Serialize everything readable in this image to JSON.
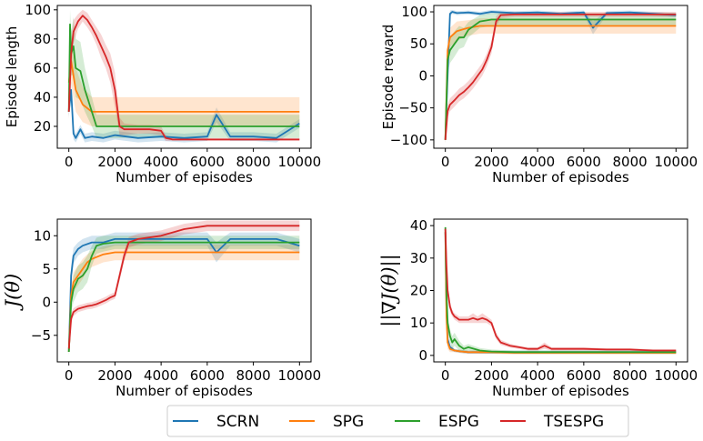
{
  "legend": [
    {
      "name": "SCRN",
      "color": "#1f77b4"
    },
    {
      "name": "SPG",
      "color": "#ff7f0e"
    },
    {
      "name": "ESPG",
      "color": "#2ca02c"
    },
    {
      "name": "TSESPG",
      "color": "#d62728"
    }
  ],
  "chart_data": [
    {
      "type": "line",
      "xlabel": "Number of episodes",
      "ylabel": "Episode length",
      "xlim": [
        -500,
        10500
      ],
      "ylim": [
        5,
        103
      ],
      "xticks": [
        0,
        2000,
        4000,
        6000,
        8000,
        10000
      ],
      "yticks": [
        20,
        40,
        60,
        80,
        100
      ],
      "grid": false,
      "series": [
        {
          "name": "SCRN",
          "color": "#1f77b4",
          "x": [
            0,
            100,
            200,
            300,
            500,
            700,
            1000,
            1500,
            2000,
            3000,
            4000,
            5000,
            6000,
            6400,
            7000,
            8000,
            9000,
            10000
          ],
          "y": [
            30,
            45,
            15,
            12,
            18,
            12,
            13,
            12,
            14,
            12,
            13,
            12,
            13,
            28,
            13,
            13,
            12,
            22
          ],
          "band": [
            3,
            6,
            4,
            3,
            3,
            3,
            3,
            3,
            3,
            3,
            3,
            3,
            3,
            5,
            3,
            3,
            3,
            3
          ]
        },
        {
          "name": "SPG",
          "color": "#ff7f0e",
          "x": [
            0,
            100,
            300,
            600,
            1000,
            1500,
            2000,
            3000,
            4000,
            6000,
            8000,
            10000
          ],
          "y": [
            50,
            65,
            45,
            35,
            30,
            30,
            30,
            30,
            30,
            30,
            30,
            30
          ],
          "band": [
            15,
            15,
            15,
            12,
            10,
            10,
            10,
            10,
            10,
            10,
            10,
            10
          ]
        },
        {
          "name": "ESPG",
          "color": "#2ca02c",
          "x": [
            0,
            50,
            100,
            200,
            300,
            500,
            700,
            1000,
            1200,
            1500,
            2000,
            3000,
            4000,
            6000,
            8000,
            10000
          ],
          "y": [
            30,
            90,
            70,
            75,
            60,
            58,
            45,
            30,
            20,
            20,
            20,
            20,
            20,
            20,
            20,
            20
          ],
          "band": [
            5,
            10,
            15,
            20,
            20,
            20,
            15,
            10,
            8,
            8,
            8,
            8,
            8,
            8,
            8,
            8
          ]
        },
        {
          "name": "TSESPG",
          "color": "#d62728",
          "x": [
            0,
            100,
            200,
            400,
            600,
            800,
            1000,
            1200,
            1400,
            1600,
            1800,
            2000,
            2200,
            2400,
            3000,
            3500,
            4000,
            4200,
            4500,
            5000,
            6000,
            7000,
            8000,
            9000,
            10000
          ],
          "y": [
            30,
            70,
            85,
            92,
            96,
            93,
            88,
            82,
            75,
            68,
            60,
            45,
            20,
            18,
            18,
            18,
            17,
            12,
            11,
            11,
            11,
            11,
            11,
            11,
            11
          ],
          "band": [
            5,
            8,
            8,
            5,
            4,
            5,
            5,
            6,
            8,
            8,
            10,
            12,
            6,
            4,
            3,
            3,
            3,
            2,
            1,
            1,
            1,
            1,
            1,
            1,
            1
          ]
        }
      ]
    },
    {
      "type": "line",
      "xlabel": "Number of episodes",
      "ylabel": "Episode reward",
      "xlim": [
        -500,
        10500
      ],
      "ylim": [
        -113,
        110
      ],
      "xticks": [
        0,
        2000,
        4000,
        6000,
        8000,
        10000
      ],
      "yticks": [
        -100,
        -50,
        0,
        50,
        100
      ],
      "grid": false,
      "series": [
        {
          "name": "SCRN",
          "color": "#1f77b4",
          "x": [
            0,
            100,
            200,
            300,
            500,
            1000,
            1500,
            2000,
            3000,
            4000,
            5000,
            6000,
            6400,
            7000,
            8000,
            9000,
            10000
          ],
          "y": [
            -100,
            0,
            97,
            100,
            98,
            99,
            97,
            100,
            98,
            99,
            97,
            99,
            75,
            98,
            99,
            97,
            95
          ],
          "band": [
            5,
            10,
            5,
            3,
            3,
            3,
            3,
            3,
            3,
            3,
            3,
            3,
            10,
            3,
            3,
            3,
            3
          ]
        },
        {
          "name": "SPG",
          "color": "#ff7f0e",
          "x": [
            0,
            100,
            200,
            500,
            1000,
            1500,
            2000,
            3000,
            4000,
            6000,
            8000,
            10000
          ],
          "y": [
            -100,
            40,
            60,
            70,
            75,
            78,
            78,
            78,
            78,
            78,
            78,
            78
          ],
          "band": [
            5,
            15,
            15,
            15,
            12,
            12,
            12,
            12,
            12,
            12,
            12,
            12
          ]
        },
        {
          "name": "ESPG",
          "color": "#2ca02c",
          "x": [
            0,
            100,
            200,
            400,
            600,
            800,
            1000,
            1500,
            2000,
            3000,
            4000,
            6000,
            8000,
            10000
          ],
          "y": [
            -100,
            25,
            40,
            50,
            60,
            60,
            72,
            85,
            88,
            88,
            88,
            88,
            88,
            88
          ],
          "band": [
            5,
            20,
            20,
            20,
            18,
            15,
            12,
            10,
            10,
            10,
            10,
            10,
            10,
            10
          ]
        },
        {
          "name": "TSESPG",
          "color": "#d62728",
          "x": [
            0,
            100,
            200,
            400,
            600,
            800,
            1000,
            1200,
            1400,
            1600,
            1800,
            2000,
            2200,
            2400,
            3000,
            4000,
            6000,
            8000,
            10000
          ],
          "y": [
            -100,
            -55,
            -45,
            -38,
            -30,
            -25,
            -18,
            -10,
            0,
            10,
            25,
            45,
            85,
            95,
            96,
            96,
            96,
            96,
            96
          ],
          "band": [
            5,
            10,
            10,
            10,
            10,
            10,
            10,
            10,
            10,
            10,
            10,
            10,
            8,
            5,
            4,
            4,
            4,
            4,
            4
          ]
        }
      ]
    },
    {
      "type": "line",
      "xlabel": "Number of episodes",
      "ylabel": "J(θ)",
      "xlim": [
        -500,
        10500
      ],
      "ylim": [
        -9,
        12.5
      ],
      "xticks": [
        0,
        2000,
        4000,
        6000,
        8000,
        10000
      ],
      "yticks": [
        -5,
        0,
        5,
        10
      ],
      "grid": false,
      "series": [
        {
          "name": "SCRN",
          "color": "#1f77b4",
          "x": [
            0,
            100,
            200,
            400,
            600,
            1000,
            1500,
            2000,
            2500,
            3000,
            4000,
            5000,
            6000,
            6400,
            7000,
            8000,
            9000,
            10000
          ],
          "y": [
            -7.5,
            4,
            7,
            8,
            8.5,
            9,
            9,
            9.5,
            9.5,
            9.5,
            9.5,
            9.5,
            9.5,
            7.5,
            9.5,
            9.5,
            9.5,
            8.5
          ],
          "band": [
            0.5,
            1.5,
            1.2,
            1,
            1,
            1,
            1,
            1,
            1,
            1,
            1,
            1,
            1,
            1.5,
            1,
            1,
            1,
            1
          ]
        },
        {
          "name": "SPG",
          "color": "#ff7f0e",
          "x": [
            0,
            100,
            200,
            400,
            600,
            800,
            1000,
            1500,
            2000,
            3000,
            4000,
            6000,
            8000,
            10000
          ],
          "y": [
            -7.5,
            1,
            3,
            4,
            5,
            6,
            6.5,
            7.2,
            7.5,
            7.5,
            7.5,
            7.5,
            7.5,
            7.5
          ],
          "band": [
            0.5,
            1.5,
            1.5,
            1.5,
            1.5,
            1.2,
            1.2,
            1.2,
            1.2,
            1.2,
            1.2,
            1.2,
            1.2,
            1.2
          ]
        },
        {
          "name": "ESPG",
          "color": "#2ca02c",
          "x": [
            0,
            100,
            200,
            400,
            600,
            800,
            1000,
            1200,
            1500,
            2000,
            3000,
            4000,
            6000,
            8000,
            10000
          ],
          "y": [
            -7.5,
            0,
            2,
            3.5,
            4,
            5,
            7,
            8.5,
            8.8,
            9,
            9,
            9,
            9,
            9,
            9
          ],
          "band": [
            0.5,
            1.5,
            2,
            2,
            2,
            2,
            1.5,
            1.2,
            1.2,
            1,
            1,
            1,
            1,
            1,
            1
          ]
        },
        {
          "name": "TSESPG",
          "color": "#d62728",
          "x": [
            0,
            100,
            200,
            400,
            600,
            800,
            1000,
            1200,
            1400,
            1600,
            1800,
            2000,
            2200,
            2400,
            2600,
            3000,
            4000,
            5000,
            6000,
            8000,
            10000
          ],
          "y": [
            -7,
            -2.5,
            -1.5,
            -1,
            -0.8,
            -0.6,
            -0.5,
            -0.3,
            0,
            0.3,
            0.7,
            1,
            4,
            7,
            9,
            9.5,
            10,
            11,
            11.5,
            11.5,
            11.5
          ],
          "band": [
            0.5,
            0.8,
            0.6,
            0.5,
            0.5,
            0.5,
            0.5,
            0.5,
            0.5,
            0.5,
            0.5,
            0.5,
            0.8,
            0.8,
            0.8,
            0.8,
            0.8,
            0.8,
            0.8,
            0.8,
            0.8
          ]
        }
      ]
    },
    {
      "type": "line",
      "xlabel": "Number of episodes",
      "ylabel": "||∇J(θ)||",
      "xlim": [
        -500,
        10500
      ],
      "ylim": [
        -2,
        42
      ],
      "xticks": [
        0,
        2000,
        4000,
        6000,
        8000,
        10000
      ],
      "yticks": [
        0,
        10,
        20,
        30,
        40
      ],
      "grid": false,
      "series": [
        {
          "name": "SCRN",
          "color": "#1f77b4",
          "x": [
            0,
            50,
            100,
            200,
            400,
            700,
            1000,
            1500,
            2000,
            3000,
            4000,
            6000,
            8000,
            10000
          ],
          "y": [
            38,
            15,
            5,
            2.5,
            1.5,
            1.2,
            1,
            1,
            1,
            1,
            1,
            1,
            1,
            1
          ],
          "band": [
            1,
            3,
            2,
            1,
            0.5,
            0.5,
            0.5,
            0.5,
            0.5,
            0.5,
            0.5,
            0.5,
            0.5,
            0.5
          ]
        },
        {
          "name": "SPG",
          "color": "#ff7f0e",
          "x": [
            0,
            50,
            100,
            200,
            400,
            700,
            1000,
            1500,
            2000,
            3000,
            4000,
            6000,
            8000,
            10000
          ],
          "y": [
            38,
            12,
            4,
            2,
            1.5,
            1.2,
            1,
            1,
            1,
            0.8,
            0.8,
            0.8,
            0.8,
            0.8
          ],
          "band": [
            1,
            3,
            2,
            1,
            0.5,
            0.5,
            0.5,
            0.5,
            0.5,
            0.5,
            0.5,
            0.5,
            0.5,
            0.5
          ]
        },
        {
          "name": "ESPG",
          "color": "#2ca02c",
          "x": [
            0,
            50,
            100,
            200,
            300,
            400,
            600,
            800,
            1000,
            1500,
            2000,
            3000,
            4000,
            6000,
            8000,
            10000
          ],
          "y": [
            39.5,
            20,
            10,
            6,
            4,
            5,
            3,
            2,
            2.5,
            1.5,
            1.2,
            1,
            1,
            1,
            1,
            1
          ],
          "band": [
            1,
            4,
            3,
            2,
            2,
            2,
            1.5,
            1,
            1,
            0.8,
            0.6,
            0.5,
            0.5,
            0.5,
            0.5,
            0.5
          ]
        },
        {
          "name": "TSESPG",
          "color": "#d62728",
          "x": [
            0,
            50,
            100,
            200,
            300,
            400,
            500,
            600,
            800,
            1000,
            1200,
            1400,
            1600,
            1800,
            2000,
            2200,
            2400,
            2800,
            3200,
            3600,
            4000,
            4300,
            4600,
            5000,
            6000,
            7000,
            8000,
            9000,
            10000
          ],
          "y": [
            39,
            28,
            20,
            15,
            13,
            12,
            11.5,
            11,
            11,
            11,
            11.5,
            11,
            11.5,
            11,
            10,
            6,
            4,
            3,
            2.5,
            2,
            2,
            3,
            2,
            2,
            2,
            1.8,
            1.8,
            1.5,
            1.5
          ],
          "band": [
            1,
            2,
            2,
            1.5,
            1,
            1,
            1,
            1,
            1,
            1,
            1.5,
            1,
            1.5,
            1,
            1,
            1,
            0.8,
            0.6,
            0.5,
            0.5,
            0.5,
            1,
            0.5,
            0.5,
            0.5,
            0.4,
            0.4,
            0.4,
            0.4
          ]
        }
      ]
    }
  ]
}
